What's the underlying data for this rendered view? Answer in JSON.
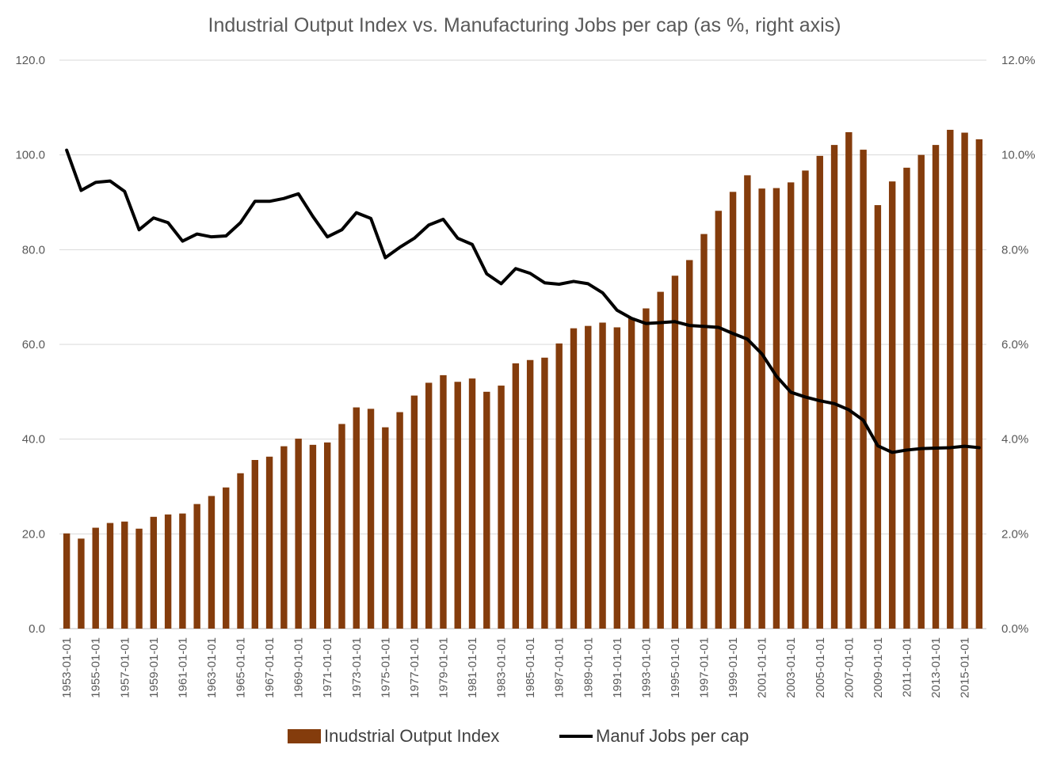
{
  "chart_data": {
    "type": "bar",
    "title": "Industrial Output Index vs. Manufacturing Jobs per cap (as %, right axis)",
    "x": [
      "1953-01-01",
      "1954-01-01",
      "1955-01-01",
      "1956-01-01",
      "1957-01-01",
      "1958-01-01",
      "1959-01-01",
      "1960-01-01",
      "1961-01-01",
      "1962-01-01",
      "1963-01-01",
      "1964-01-01",
      "1965-01-01",
      "1966-01-01",
      "1967-01-01",
      "1968-01-01",
      "1969-01-01",
      "1970-01-01",
      "1971-01-01",
      "1972-01-01",
      "1973-01-01",
      "1974-01-01",
      "1975-01-01",
      "1976-01-01",
      "1977-01-01",
      "1978-01-01",
      "1979-01-01",
      "1980-01-01",
      "1981-01-01",
      "1982-01-01",
      "1983-01-01",
      "1984-01-01",
      "1985-01-01",
      "1986-01-01",
      "1987-01-01",
      "1988-01-01",
      "1989-01-01",
      "1990-01-01",
      "1991-01-01",
      "1992-01-01",
      "1993-01-01",
      "1994-01-01",
      "1995-01-01",
      "1996-01-01",
      "1997-01-01",
      "1998-01-01",
      "1999-01-01",
      "2000-01-01",
      "2001-01-01",
      "2002-01-01",
      "2003-01-01",
      "2004-01-01",
      "2005-01-01",
      "2006-01-01",
      "2007-01-01",
      "2008-01-01",
      "2009-01-01",
      "2010-01-01",
      "2011-01-01",
      "2012-01-01",
      "2013-01-01",
      "2014-01-01",
      "2015-01-01",
      "2016-01-01"
    ],
    "x_tick_labels": [
      "1953-01-01",
      "1955-01-01",
      "1957-01-01",
      "1959-01-01",
      "1961-01-01",
      "1963-01-01",
      "1965-01-01",
      "1967-01-01",
      "1969-01-01",
      "1971-01-01",
      "1973-01-01",
      "1975-01-01",
      "1977-01-01",
      "1979-01-01",
      "1981-01-01",
      "1983-01-01",
      "1985-01-01",
      "1987-01-01",
      "1989-01-01",
      "1991-01-01",
      "1993-01-01",
      "1995-01-01",
      "1997-01-01",
      "1999-01-01",
      "2001-01-01",
      "2003-01-01",
      "2005-01-01",
      "2007-01-01",
      "2009-01-01",
      "2011-01-01",
      "2013-01-01",
      "2015-01-01"
    ],
    "series": [
      {
        "name": "Inudstrial Output Index",
        "type": "bar",
        "axis": "left",
        "color": "#843c0c",
        "values": [
          20.1,
          19.0,
          21.3,
          22.3,
          22.6,
          21.1,
          23.6,
          24.1,
          24.3,
          26.3,
          28.0,
          29.8,
          32.8,
          35.6,
          36.3,
          38.5,
          40.1,
          38.8,
          39.3,
          43.2,
          46.7,
          46.4,
          42.5,
          45.7,
          49.2,
          51.9,
          53.5,
          52.1,
          52.8,
          50.0,
          51.3,
          56.0,
          56.7,
          57.2,
          60.2,
          63.4,
          63.9,
          64.6,
          63.6,
          65.6,
          67.6,
          71.1,
          74.5,
          77.8,
          83.3,
          88.2,
          92.2,
          95.7,
          92.9,
          93.0,
          94.2,
          96.7,
          99.8,
          102.1,
          104.8,
          101.1,
          89.4,
          94.4,
          97.3,
          100.0,
          102.1,
          105.3,
          104.7,
          103.3
        ]
      },
      {
        "name": "Manuf Jobs per cap",
        "type": "line",
        "axis": "right",
        "color": "#000000",
        "values": [
          10.1,
          9.25,
          9.42,
          9.45,
          9.23,
          8.42,
          8.67,
          8.57,
          8.18,
          8.33,
          8.27,
          8.29,
          8.57,
          9.02,
          9.02,
          9.08,
          9.18,
          8.7,
          8.27,
          8.42,
          8.78,
          8.66,
          7.83,
          8.05,
          8.24,
          8.52,
          8.64,
          8.24,
          8.11,
          7.49,
          7.28,
          7.6,
          7.5,
          7.3,
          7.27,
          7.33,
          7.28,
          7.09,
          6.72,
          6.55,
          6.44,
          6.46,
          6.48,
          6.4,
          6.38,
          6.36,
          6.23,
          6.11,
          5.8,
          5.33,
          4.99,
          4.89,
          4.81,
          4.75,
          4.62,
          4.4,
          3.86,
          3.72,
          3.77,
          3.8,
          3.81,
          3.82,
          3.85,
          3.82
        ]
      }
    ],
    "y_left": {
      "ylim": [
        0,
        120
      ],
      "ticks": [
        "0.0",
        "20.0",
        "40.0",
        "60.0",
        "80.0",
        "100.0",
        "120.0"
      ]
    },
    "y_right": {
      "ylim": [
        0,
        12
      ],
      "ticks": [
        "0.0%",
        "2.0%",
        "4.0%",
        "6.0%",
        "8.0%",
        "10.0%",
        "12.0%"
      ]
    },
    "grid": true,
    "legend_position": "bottom",
    "xlabel": "",
    "ylabel": ""
  }
}
